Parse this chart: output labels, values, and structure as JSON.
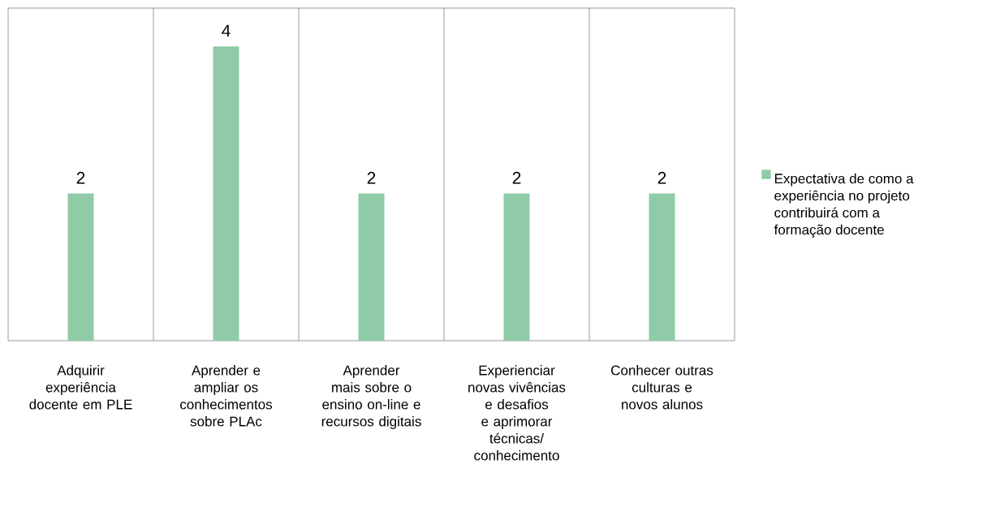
{
  "chart_data": {
    "type": "bar",
    "categories": [
      "Adquirir experiência docente em PLE",
      "Aprender e ampliar os conhecimentos sobre PLAc",
      "Aprender mais sobre o ensino on-line e recursos digitais",
      "Experienciar novas vivências e desafios e aprimorar técnicas/ conhecimento",
      "Conhecer outras culturas e novos alunos"
    ],
    "series": [
      {
        "name": "Expectativa de como a experiência no projeto contribuirá com a formação docente",
        "color": "#8ecba6",
        "values": [
          2,
          4,
          2,
          2,
          2
        ]
      }
    ],
    "data_labels": true,
    "grid": "x",
    "legend": "right"
  }
}
